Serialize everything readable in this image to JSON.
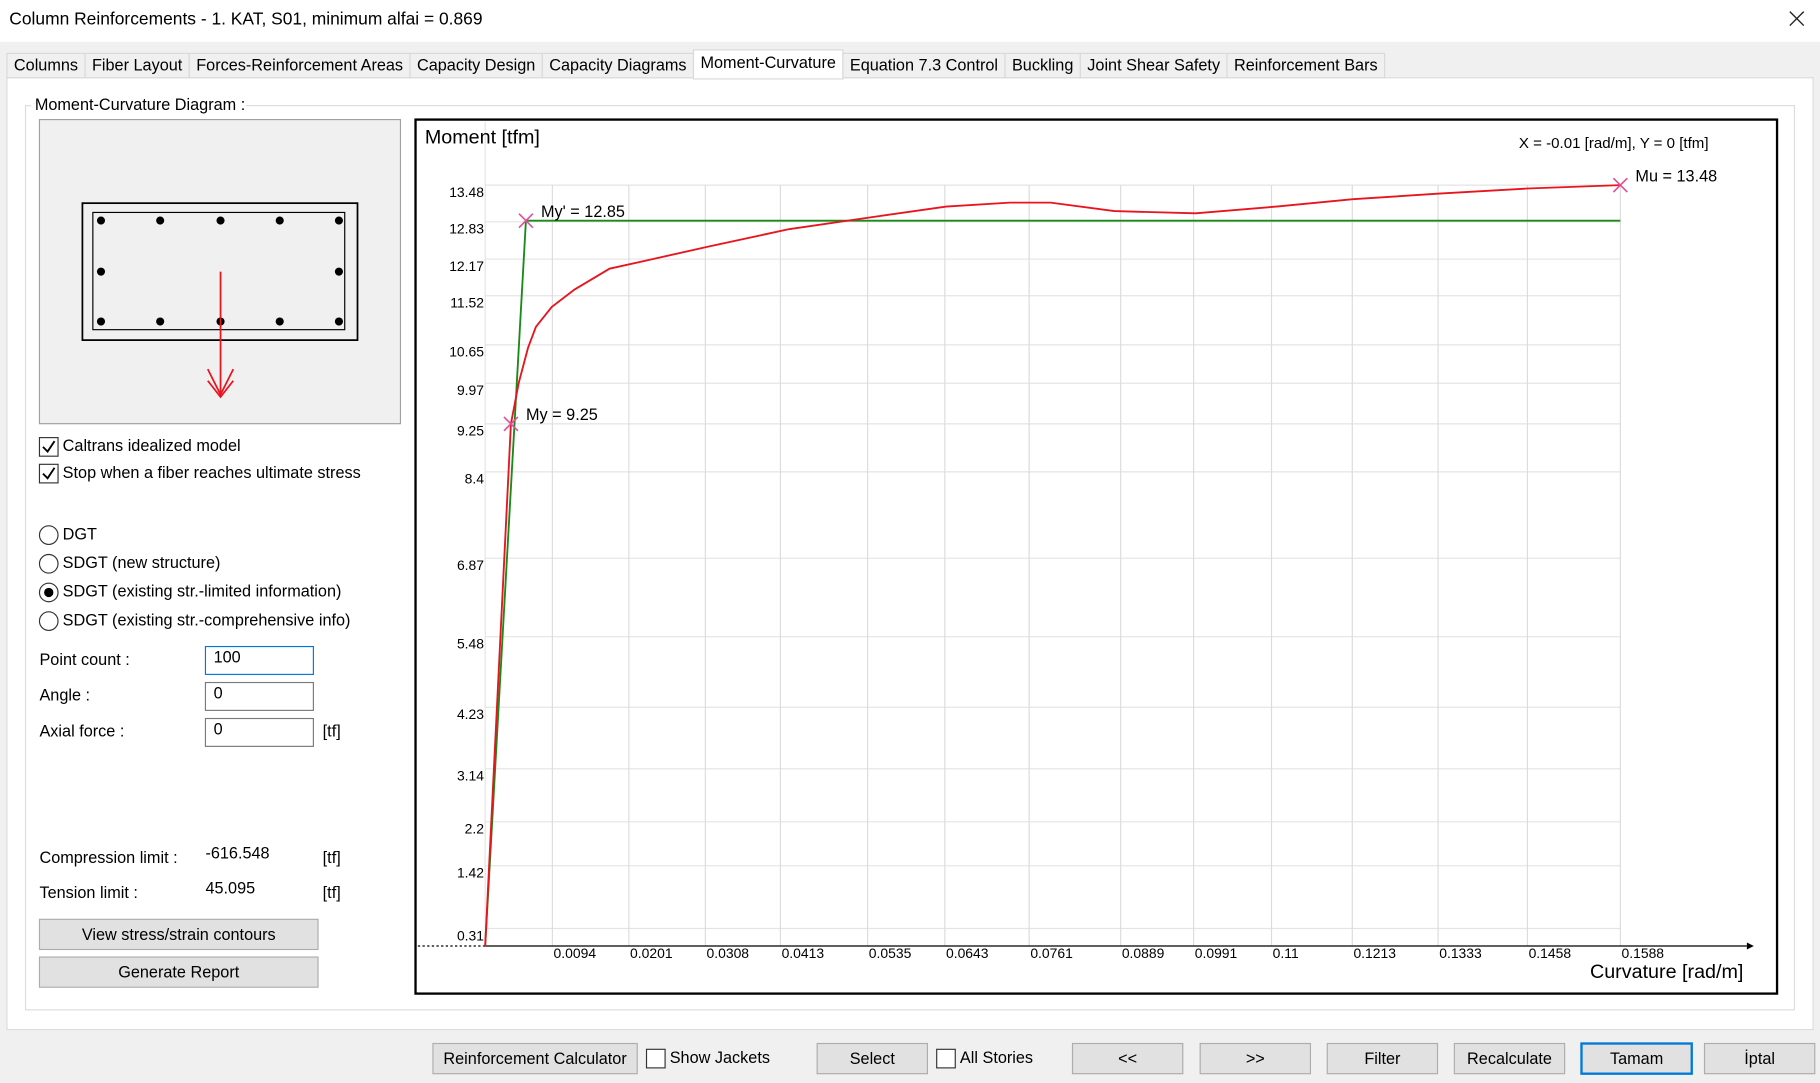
{
  "window": {
    "title": "Column Reinforcements - 1. KAT, S01, minimum alfai = 0.869"
  },
  "tabs": [
    {
      "label": "Columns",
      "active": false
    },
    {
      "label": "Fiber Layout",
      "active": false
    },
    {
      "label": "Forces-Reinforcement Areas",
      "active": false
    },
    {
      "label": "Capacity Design",
      "active": false
    },
    {
      "label": "Capacity Diagrams",
      "active": false
    },
    {
      "label": "Moment-Curvature",
      "active": true
    },
    {
      "label": "Equation 7.3 Control",
      "active": false
    },
    {
      "label": "Buckling",
      "active": false
    },
    {
      "label": "Joint Shear Safety",
      "active": false
    },
    {
      "label": "Reinforcement Bars",
      "active": false
    }
  ],
  "panel": {
    "group_title": "Moment-Curvature Diagram :",
    "checkboxes": [
      {
        "label": "Caltrans idealized model",
        "checked": true
      },
      {
        "label": "Stop when a fiber reaches ultimate stress",
        "checked": true
      }
    ],
    "radios": [
      {
        "label": "DGT",
        "selected": false
      },
      {
        "label": "SDGT (new structure)",
        "selected": false
      },
      {
        "label": "SDGT (existing str.-limited information)",
        "selected": true
      },
      {
        "label": "SDGT (existing str.-comprehensive info)",
        "selected": false
      }
    ],
    "fields": [
      {
        "label": "Point count :",
        "value": "100",
        "focused": true
      },
      {
        "label": "Angle :",
        "value": "0",
        "focused": false
      },
      {
        "label": "Axial force :",
        "value": "0",
        "unit": "[tf]",
        "focused": false
      }
    ],
    "limits": [
      {
        "label": "Compression limit :",
        "value": "-616.548",
        "unit": "[tf]"
      },
      {
        "label": "Tension limit :",
        "value": "45.095",
        "unit": "[tf]"
      }
    ],
    "buttons": [
      "View stress/strain contours",
      "Generate Report"
    ]
  },
  "chart_data": {
    "type": "line",
    "y_label": "Moment   [tfm]",
    "x_label": "Curvature [rad/m]",
    "cursor_readout": "X = -0.01 [rad/m],  Y = 0 [tfm]",
    "xlim": [
      0,
      0.1765
    ],
    "ylim": [
      0,
      14.6
    ],
    "xticks": [
      0.0094,
      0.0201,
      0.0308,
      0.0413,
      0.0535,
      0.0643,
      0.0761,
      0.0889,
      0.0991,
      0.11,
      0.1213,
      0.1333,
      0.1458,
      0.1588
    ],
    "yticks": [
      0.31,
      1.42,
      2.2,
      3.14,
      4.23,
      5.48,
      6.87,
      8.4,
      9.25,
      9.97,
      10.65,
      11.52,
      12.17,
      12.83,
      13.48
    ],
    "grid": true,
    "series": [
      {
        "color": "#e8141e",
        "x": [
          0,
          0.0036,
          0.0047,
          0.006,
          0.0071,
          0.0093,
          0.0125,
          0.0174,
          0.0231,
          0.0312,
          0.0425,
          0.0534,
          0.0645,
          0.0734,
          0.0791,
          0.088,
          0.0994,
          0.1107,
          0.1214,
          0.1335,
          0.1458,
          0.1588
        ],
        "values": [
          0,
          9.25,
          9.98,
          10.6,
          10.97,
          11.32,
          11.63,
          12.0,
          12.16,
          12.39,
          12.7,
          12.9,
          13.1,
          13.17,
          13.17,
          13.02,
          12.98,
          13.1,
          13.23,
          13.33,
          13.42,
          13.48
        ]
      },
      {
        "color": "#1a8a1a",
        "x": [
          0,
          0.0057,
          0.1588
        ],
        "values": [
          0,
          12.85,
          12.85
        ]
      }
    ],
    "marker_color": "#e0509a",
    "annotations": [
      {
        "text": "My' = 12.85",
        "x": 0.0057,
        "y": 12.85
      },
      {
        "text": "My = 9.25",
        "x": 0.0036,
        "y": 9.25
      },
      {
        "text": "Mu = 13.48",
        "x": 0.1588,
        "y": 13.48
      }
    ]
  },
  "footer": [
    {
      "kind": "button",
      "label": "Reinforcement Calculator"
    },
    {
      "kind": "checkbox",
      "label": "Show Jackets",
      "checked": false
    },
    {
      "kind": "button",
      "label": "Select"
    },
    {
      "kind": "checkbox",
      "label": "All Stories",
      "checked": false
    },
    {
      "kind": "button",
      "label": "<<"
    },
    {
      "kind": "button",
      "label": ">>"
    },
    {
      "kind": "button",
      "label": "Filter"
    },
    {
      "kind": "button",
      "label": "Recalculate"
    },
    {
      "kind": "button",
      "label": "Tamam",
      "default": true
    },
    {
      "kind": "button",
      "label": "İptal"
    }
  ]
}
